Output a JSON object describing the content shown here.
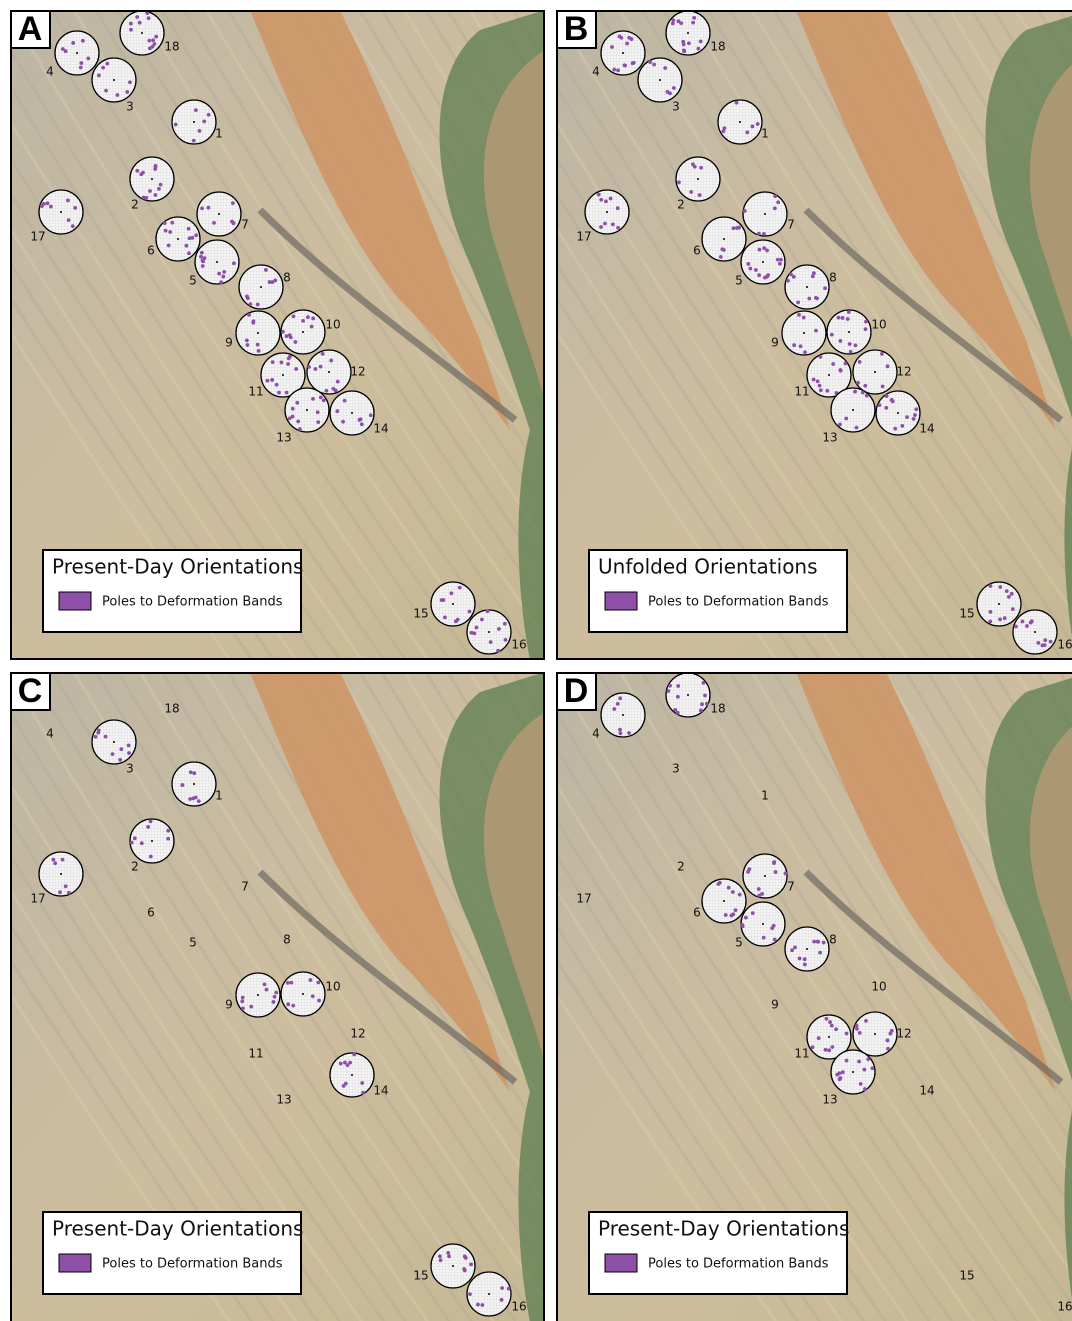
{
  "panels": [
    {
      "letter": "A",
      "legend": {
        "title": "Present-Day Orientations",
        "item": "Poles to Deformation Bands"
      },
      "sites": [
        {
          "label": "1",
          "stereonet": true
        },
        {
          "label": "2",
          "stereonet": true
        },
        {
          "label": "3",
          "stereonet": true
        },
        {
          "label": "4",
          "stereonet": true
        },
        {
          "label": "5",
          "stereonet": true
        },
        {
          "label": "6",
          "stereonet": true
        },
        {
          "label": "7",
          "stereonet": true
        },
        {
          "label": "8",
          "stereonet": true
        },
        {
          "label": "9",
          "stereonet": true
        },
        {
          "label": "10",
          "stereonet": true
        },
        {
          "label": "11",
          "stereonet": true
        },
        {
          "label": "12",
          "stereonet": true
        },
        {
          "label": "13",
          "stereonet": true
        },
        {
          "label": "14",
          "stereonet": true
        },
        {
          "label": "15",
          "stereonet": true
        },
        {
          "label": "16",
          "stereonet": true
        },
        {
          "label": "17",
          "stereonet": true
        },
        {
          "label": "18",
          "stereonet": true
        }
      ]
    },
    {
      "letter": "B",
      "legend": {
        "title": "Unfolded Orientations",
        "item": "Poles to Deformation Bands"
      },
      "sites": [
        {
          "label": "1",
          "stereonet": true
        },
        {
          "label": "2",
          "stereonet": true
        },
        {
          "label": "3",
          "stereonet": true
        },
        {
          "label": "4",
          "stereonet": true
        },
        {
          "label": "5",
          "stereonet": true
        },
        {
          "label": "6",
          "stereonet": true
        },
        {
          "label": "7",
          "stereonet": true
        },
        {
          "label": "8",
          "stereonet": true
        },
        {
          "label": "9",
          "stereonet": true
        },
        {
          "label": "10",
          "stereonet": true
        },
        {
          "label": "11",
          "stereonet": true
        },
        {
          "label": "12",
          "stereonet": true
        },
        {
          "label": "13",
          "stereonet": true
        },
        {
          "label": "14",
          "stereonet": true
        },
        {
          "label": "15",
          "stereonet": true
        },
        {
          "label": "16",
          "stereonet": true
        },
        {
          "label": "17",
          "stereonet": true
        },
        {
          "label": "18",
          "stereonet": true
        }
      ]
    },
    {
      "letter": "C",
      "legend": {
        "title": "Present-Day Orientations",
        "item": "Poles to Deformation Bands"
      },
      "sites": [
        {
          "label": "1",
          "stereonet": true
        },
        {
          "label": "2",
          "stereonet": true
        },
        {
          "label": "3",
          "stereonet": true
        },
        {
          "label": "4",
          "stereonet": false
        },
        {
          "label": "5",
          "stereonet": false
        },
        {
          "label": "6",
          "stereonet": false
        },
        {
          "label": "7",
          "stereonet": false
        },
        {
          "label": "8",
          "stereonet": false
        },
        {
          "label": "9",
          "stereonet": true
        },
        {
          "label": "10",
          "stereonet": true
        },
        {
          "label": "11",
          "stereonet": false
        },
        {
          "label": "12",
          "stereonet": false
        },
        {
          "label": "13",
          "stereonet": false
        },
        {
          "label": "14",
          "stereonet": true
        },
        {
          "label": "15",
          "stereonet": true
        },
        {
          "label": "16",
          "stereonet": true
        },
        {
          "label": "17",
          "stereonet": true
        },
        {
          "label": "18",
          "stereonet": false
        }
      ]
    },
    {
      "letter": "D",
      "legend": {
        "title": "Present-Day Orientations",
        "item": "Poles to Deformation Bands"
      },
      "sites": [
        {
          "label": "1",
          "stereonet": false
        },
        {
          "label": "2",
          "stereonet": false
        },
        {
          "label": "3",
          "stereonet": false
        },
        {
          "label": "4",
          "stereonet": true
        },
        {
          "label": "5",
          "stereonet": true
        },
        {
          "label": "6",
          "stereonet": true
        },
        {
          "label": "7",
          "stereonet": true
        },
        {
          "label": "8",
          "stereonet": true
        },
        {
          "label": "9",
          "stereonet": false
        },
        {
          "label": "10",
          "stereonet": false
        },
        {
          "label": "11",
          "stereonet": true
        },
        {
          "label": "12",
          "stereonet": true
        },
        {
          "label": "13",
          "stereonet": true
        },
        {
          "label": "14",
          "stereonet": false
        },
        {
          "label": "15",
          "stereonet": false
        },
        {
          "label": "16",
          "stereonet": false
        },
        {
          "label": "17",
          "stereonet": false
        },
        {
          "label": "18",
          "stereonet": true
        }
      ]
    }
  ]
}
